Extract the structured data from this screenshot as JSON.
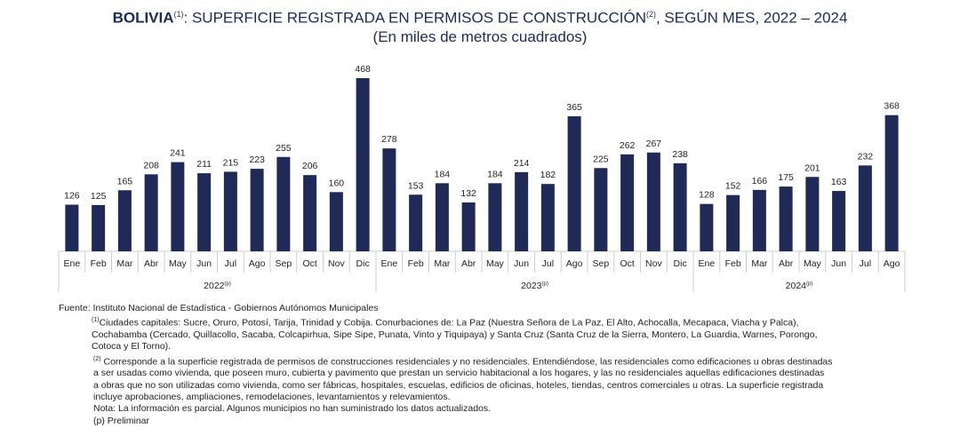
{
  "chart_data": {
    "type": "bar",
    "title_bold": "BOLIVIA",
    "title_sup1": "(1)",
    "title_rest": ": SUPERFICIE REGISTRADA EN PERMISOS DE CONSTRUCCIÓN",
    "title_sup2": "(2)",
    "title_end": ", SEGÚN MES, 2022 – 2024",
    "subtitle": "(En miles de metros cuadrados)",
    "bar_color": "#1f2a56",
    "grid": false,
    "groups": [
      {
        "year": "2022",
        "mark": "(p)",
        "categories": [
          "Ene",
          "Feb",
          "Mar",
          "Abr",
          "May",
          "Jun",
          "Jul",
          "Ago",
          "Sep",
          "Oct",
          "Nov",
          "Dic"
        ],
        "values": [
          126,
          125,
          165,
          208,
          241,
          211,
          215,
          223,
          255,
          206,
          160,
          468
        ]
      },
      {
        "year": "2023",
        "mark": "(p)",
        "categories": [
          "Ene",
          "Feb",
          "Mar",
          "Abr",
          "May",
          "Jun",
          "Jul",
          "Ago",
          "Sep",
          "Oct",
          "Nov",
          "Dic"
        ],
        "values": [
          278,
          153,
          184,
          132,
          184,
          214,
          182,
          365,
          225,
          262,
          267,
          238
        ]
      },
      {
        "year": "2024",
        "mark": "(p)",
        "categories": [
          "Ene",
          "Feb",
          "Mar",
          "Abr",
          "May",
          "Jun",
          "Jul",
          "Ago"
        ],
        "values": [
          128,
          152,
          166,
          175,
          201,
          163,
          232,
          368
        ]
      }
    ]
  },
  "notes": {
    "source": "Fuente: Instituto Nacional de Estadística - Gobiernos Autónomos Municipales",
    "n1_mark": "(1)",
    "n1_l1": "Ciudades capitales:  Sucre,  Oruro,  Potosí,  Tarija, Trinidad  y   Cobija.  Conurbaciones de:   La Paz  (Nuestra  Señora  de  La Paz,  El Alto, Achocalla,  Mecapaca, Viacha  y  Palca),",
    "n1_l2": "Cochabamba (Cercado,  Quillacollo,  Sacaba,  Colcapirhua,  Sipe Sipe,  Punata,  Vinto y  Tiquipaya) y Santa Cruz (Santa Cruz de  la Sierra, Montero, La Guardia, Warnes, Porongo,",
    "n1_l3": "Cotoca y El Torno).",
    "n2_mark": "(2)",
    "n2_l1": " Corresponde a la superficie registrada  de permisos de  construcciones residenciales y no residenciales. Entendiéndose,  las  residenciales como edificaciones  u obras destinadas",
    "n2_l2": "a ser usadas como vivienda, que poseen muro, cubierta y pavimento que prestan un servicio habitacional a los hogares, y las no  residenciales aquellas edificaciones destinadas",
    "n2_l3": "a obras  que no son utilizadas como vivienda, como ser fábricas, hospitales, escuelas, edificios de oficinas, hoteles, tiendas, centros comerciales u otras. La superficie registrada",
    "n2_l4": "incluye aprobaciones, ampliaciones, remodelaciones, levantamientos y relevamientos.",
    "nota": "Nota: La información es parcial. Algunos municipios no han suministrado los datos actualizados.",
    "prelim": "(p) Preliminar"
  }
}
